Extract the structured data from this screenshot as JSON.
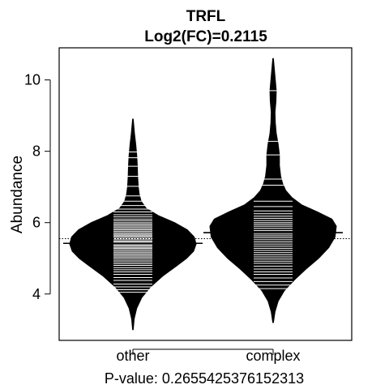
{
  "chart_data": {
    "type": "beanplot",
    "title": "TRFL",
    "subtitle": "Log2(FC)=0.2115",
    "xlabel": "",
    "ylabel": "Abundance",
    "footer": "P-value: 0.2655425376152313",
    "categories": [
      "other",
      "complex"
    ],
    "ylim": [
      2.7,
      10.9
    ],
    "yticks": [
      4,
      6,
      8,
      10
    ],
    "overall_mean": 5.55,
    "grid": false,
    "groups": [
      {
        "label": "other",
        "mean": 5.42,
        "min": 3.0,
        "max": 8.9,
        "density": [
          [
            3.0,
            0.005
          ],
          [
            3.3,
            0.02
          ],
          [
            3.6,
            0.06
          ],
          [
            3.9,
            0.14
          ],
          [
            4.2,
            0.28
          ],
          [
            4.5,
            0.47
          ],
          [
            4.8,
            0.7
          ],
          [
            5.0,
            0.85
          ],
          [
            5.2,
            0.96
          ],
          [
            5.4,
            1.0
          ],
          [
            5.6,
            0.97
          ],
          [
            5.8,
            0.86
          ],
          [
            6.0,
            0.66
          ],
          [
            6.2,
            0.4
          ],
          [
            6.4,
            0.21
          ],
          [
            6.6,
            0.13
          ],
          [
            6.8,
            0.1
          ],
          [
            7.0,
            0.085
          ],
          [
            7.3,
            0.075
          ],
          [
            7.6,
            0.07
          ],
          [
            7.9,
            0.06
          ],
          [
            8.2,
            0.045
          ],
          [
            8.5,
            0.025
          ],
          [
            8.9,
            0.005
          ]
        ],
        "points": [
          4.05,
          4.12,
          4.2,
          4.28,
          4.38,
          4.46,
          4.55,
          4.62,
          4.68,
          4.74,
          4.8,
          4.85,
          4.9,
          4.95,
          5.0,
          5.04,
          5.08,
          5.12,
          5.16,
          5.2,
          5.24,
          5.28,
          5.31,
          5.35,
          5.38,
          5.42,
          5.45,
          5.48,
          5.52,
          5.55,
          5.58,
          5.62,
          5.65,
          5.68,
          5.72,
          5.76,
          5.8,
          5.84,
          5.88,
          5.92,
          5.96,
          6.0,
          6.05,
          6.1,
          6.16,
          6.22,
          6.3,
          6.38,
          6.48,
          6.6,
          6.75,
          7.02,
          7.3,
          7.58,
          7.82,
          7.98
        ]
      },
      {
        "label": "complex",
        "mean": 5.72,
        "min": 3.2,
        "max": 10.6,
        "density": [
          [
            3.2,
            0.005
          ],
          [
            3.5,
            0.03
          ],
          [
            3.8,
            0.08
          ],
          [
            4.1,
            0.18
          ],
          [
            4.4,
            0.34
          ],
          [
            4.7,
            0.52
          ],
          [
            5.0,
            0.72
          ],
          [
            5.3,
            0.88
          ],
          [
            5.6,
            0.98
          ],
          [
            5.9,
            1.0
          ],
          [
            6.1,
            0.93
          ],
          [
            6.3,
            0.7
          ],
          [
            6.5,
            0.45
          ],
          [
            6.7,
            0.3
          ],
          [
            6.9,
            0.2
          ],
          [
            7.1,
            0.15
          ],
          [
            7.3,
            0.12
          ],
          [
            7.6,
            0.1
          ],
          [
            7.9,
            0.1
          ],
          [
            8.2,
            0.08
          ],
          [
            8.5,
            0.05
          ],
          [
            8.8,
            0.035
          ],
          [
            9.1,
            0.03
          ],
          [
            9.4,
            0.045
          ],
          [
            9.7,
            0.05
          ],
          [
            10.0,
            0.035
          ],
          [
            10.3,
            0.02
          ],
          [
            10.6,
            0.005
          ]
        ],
        "points": [
          4.15,
          4.25,
          4.35,
          4.45,
          4.55,
          4.62,
          4.7,
          4.78,
          4.86,
          4.92,
          4.98,
          5.04,
          5.1,
          5.16,
          5.22,
          5.28,
          5.34,
          5.4,
          5.46,
          5.52,
          5.58,
          5.63,
          5.68,
          5.73,
          5.78,
          5.84,
          5.9,
          5.95,
          6.0,
          6.06,
          6.12,
          6.18,
          6.25,
          6.33,
          6.45,
          6.6,
          7.05,
          7.22,
          7.9,
          8.28,
          9.7
        ]
      }
    ]
  }
}
